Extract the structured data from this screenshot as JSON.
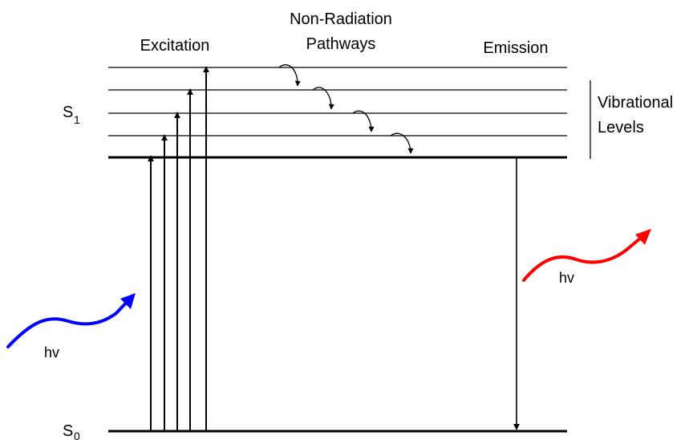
{
  "labels": {
    "excitation": "Excitation",
    "non_radiation_line1": "Non-Radiation",
    "non_radiation_line2": "Pathways",
    "emission": "Emission",
    "vibrational_line1": "Vibrational",
    "vibrational_line2": "Levels",
    "s1_letter": "S",
    "s1_sub": "1",
    "s0_letter": "S",
    "s0_sub": "0",
    "hv_absorbed": "hv",
    "hv_emitted": "hv"
  },
  "colors": {
    "line": "#000000",
    "absorbed_photon": "#0000ff",
    "emitted_photon": "#ff0000"
  },
  "icons": {
    "absorbed_photon": "blue-wavy-arrow-icon",
    "emitted_photon": "red-wavy-arrow-icon",
    "relaxation": "curved-arrow-icon"
  }
}
